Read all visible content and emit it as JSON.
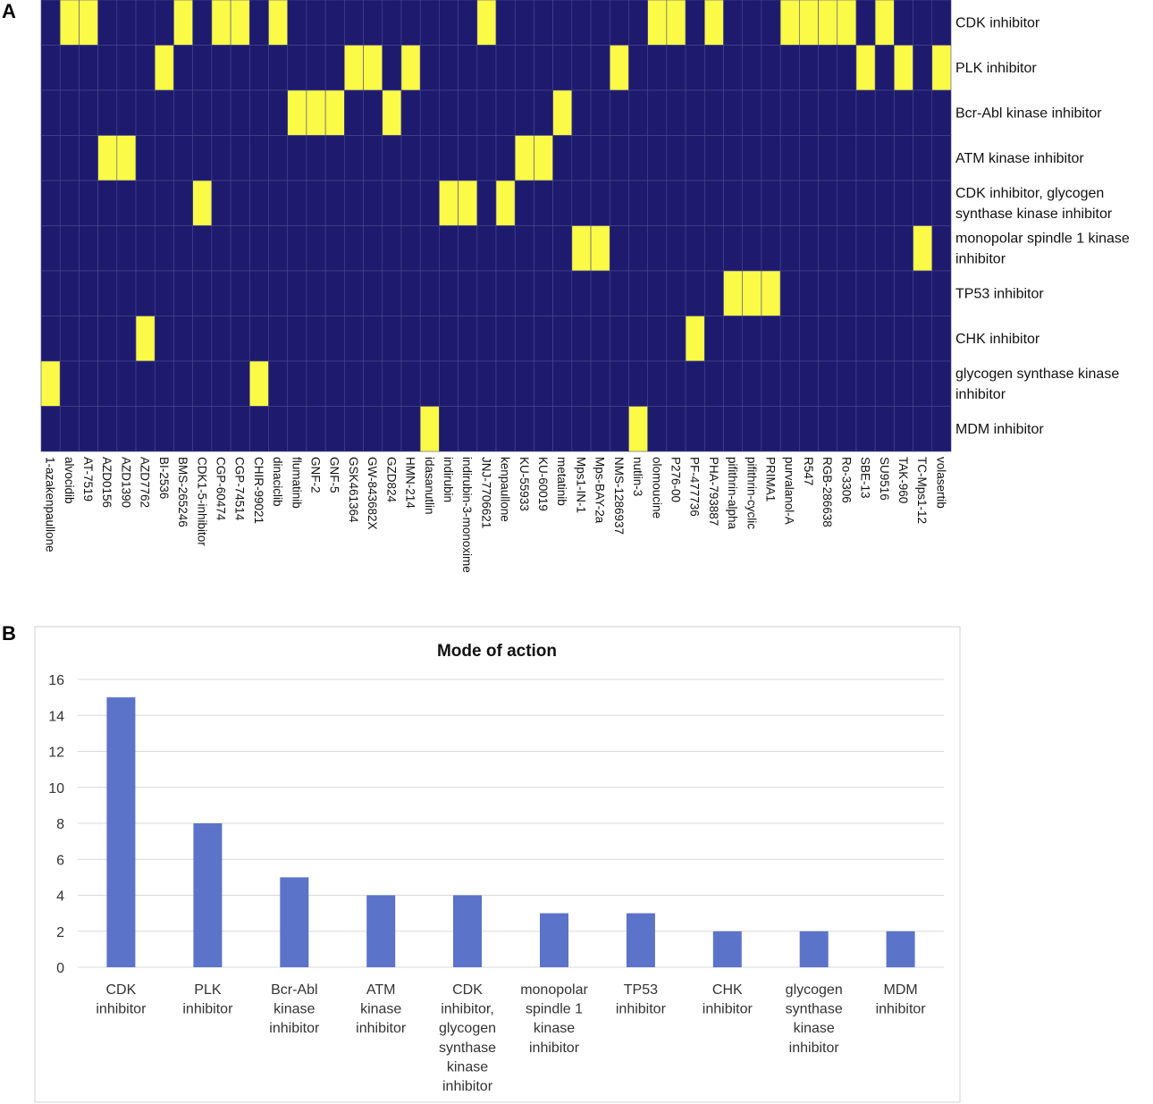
{
  "figure": {
    "panel_a_label": "A",
    "panel_b_label": "B"
  },
  "colors": {
    "cell_off": "#1e1b6e",
    "cell_on": "#fafa47",
    "grid": "#4a4a8e",
    "bar": "#5b73c8",
    "gridline": "#d9d9d9"
  },
  "chart_data": [
    {
      "type": "heatmap",
      "title": "",
      "rows": [
        "CDK inhibitor",
        "PLK inhibitor",
        "Bcr-Abl kinase inhibitor",
        "ATM kinase inhibitor",
        "CDK inhibitor, glycogen synthase kinase inhibitor",
        "monopolar spindle 1 kinase inhibitor",
        "TP53 inhibitor",
        "CHK inhibitor",
        "glycogen synthase kinase inhibitor",
        "MDM inhibitor"
      ],
      "row_label_lines": [
        [
          "CDK inhibitor"
        ],
        [
          "PLK inhibitor"
        ],
        [
          "Bcr-Abl kinase inhibitor"
        ],
        [
          "ATM kinase inhibitor"
        ],
        [
          "CDK inhibitor, glycogen",
          "synthase kinase inhibitor"
        ],
        [
          "monopolar spindle 1 kinase",
          "inhibitor"
        ],
        [
          "TP53 inhibitor"
        ],
        [
          "CHK inhibitor"
        ],
        [
          "glycogen synthase kinase",
          "inhibitor"
        ],
        [
          "MDM inhibitor"
        ]
      ],
      "columns": [
        "1-azakenpaullone",
        "alvocidib",
        "AT-7519",
        "AZD0156",
        "AZD1390",
        "AZD7762",
        "BI-2536",
        "BMS-265246",
        "CDK1-5-inhibitor",
        "CGP-60474",
        "CGP-74514",
        "CHIR-99021",
        "dinaciclib",
        "flumatinib",
        "GNF-2",
        "GNF-5",
        "GSK461364",
        "GW-843682X",
        "GZD824",
        "HMN-214",
        "idasanutlin",
        "indirubin",
        "indirubin-3-monoxime",
        "JNJ-7706621",
        "kenpaullone",
        "KU-55933",
        "KU-60019",
        "metatinib",
        "Mps1-IN-1",
        "Mps-BAY-2a",
        "NMS-1286937",
        "nutlin-3",
        "olomoucine",
        "P276-00",
        "PF-477736",
        "PHA-793887",
        "pifithrin-alpha",
        "pifithrin-cyclic",
        "PRIMA1",
        "purvalanol-A",
        "R547",
        "RGB-286638",
        "Ro-3306",
        "SBE-13",
        "SU9516",
        "TAK-960",
        "TC-Mps1-12",
        "volasertib"
      ],
      "matrix": [
        [
          0,
          1,
          1,
          0,
          0,
          0,
          0,
          1,
          0,
          1,
          1,
          0,
          1,
          0,
          0,
          0,
          0,
          0,
          0,
          0,
          0,
          0,
          0,
          1,
          0,
          0,
          0,
          0,
          0,
          0,
          0,
          0,
          1,
          1,
          0,
          1,
          0,
          0,
          0,
          1,
          1,
          1,
          1,
          0,
          1,
          0,
          0,
          0
        ],
        [
          0,
          0,
          0,
          0,
          0,
          0,
          1,
          0,
          0,
          0,
          0,
          0,
          0,
          0,
          0,
          0,
          1,
          1,
          0,
          1,
          0,
          0,
          0,
          0,
          0,
          0,
          0,
          0,
          0,
          0,
          1,
          0,
          0,
          0,
          0,
          0,
          0,
          0,
          0,
          0,
          0,
          0,
          0,
          1,
          0,
          1,
          0,
          1
        ],
        [
          0,
          0,
          0,
          0,
          0,
          0,
          0,
          0,
          0,
          0,
          0,
          0,
          0,
          1,
          1,
          1,
          0,
          0,
          1,
          0,
          0,
          0,
          0,
          0,
          0,
          0,
          0,
          1,
          0,
          0,
          0,
          0,
          0,
          0,
          0,
          0,
          0,
          0,
          0,
          0,
          0,
          0,
          0,
          0,
          0,
          0,
          0,
          0
        ],
        [
          0,
          0,
          0,
          1,
          1,
          0,
          0,
          0,
          0,
          0,
          0,
          0,
          0,
          0,
          0,
          0,
          0,
          0,
          0,
          0,
          0,
          0,
          0,
          0,
          0,
          1,
          1,
          0,
          0,
          0,
          0,
          0,
          0,
          0,
          0,
          0,
          0,
          0,
          0,
          0,
          0,
          0,
          0,
          0,
          0,
          0,
          0,
          0
        ],
        [
          0,
          0,
          0,
          0,
          0,
          0,
          0,
          0,
          1,
          0,
          0,
          0,
          0,
          0,
          0,
          0,
          0,
          0,
          0,
          0,
          0,
          1,
          1,
          0,
          1,
          0,
          0,
          0,
          0,
          0,
          0,
          0,
          0,
          0,
          0,
          0,
          0,
          0,
          0,
          0,
          0,
          0,
          0,
          0,
          0,
          0,
          0,
          0
        ],
        [
          0,
          0,
          0,
          0,
          0,
          0,
          0,
          0,
          0,
          0,
          0,
          0,
          0,
          0,
          0,
          0,
          0,
          0,
          0,
          0,
          0,
          0,
          0,
          0,
          0,
          0,
          0,
          0,
          1,
          1,
          0,
          0,
          0,
          0,
          0,
          0,
          0,
          0,
          0,
          0,
          0,
          0,
          0,
          0,
          0,
          0,
          1,
          0
        ],
        [
          0,
          0,
          0,
          0,
          0,
          0,
          0,
          0,
          0,
          0,
          0,
          0,
          0,
          0,
          0,
          0,
          0,
          0,
          0,
          0,
          0,
          0,
          0,
          0,
          0,
          0,
          0,
          0,
          0,
          0,
          0,
          0,
          0,
          0,
          0,
          0,
          1,
          1,
          1,
          0,
          0,
          0,
          0,
          0,
          0,
          0,
          0,
          0
        ],
        [
          0,
          0,
          0,
          0,
          0,
          1,
          0,
          0,
          0,
          0,
          0,
          0,
          0,
          0,
          0,
          0,
          0,
          0,
          0,
          0,
          0,
          0,
          0,
          0,
          0,
          0,
          0,
          0,
          0,
          0,
          0,
          0,
          0,
          0,
          1,
          0,
          0,
          0,
          0,
          0,
          0,
          0,
          0,
          0,
          0,
          0,
          0,
          0
        ],
        [
          1,
          0,
          0,
          0,
          0,
          0,
          0,
          0,
          0,
          0,
          0,
          1,
          0,
          0,
          0,
          0,
          0,
          0,
          0,
          0,
          0,
          0,
          0,
          0,
          0,
          0,
          0,
          0,
          0,
          0,
          0,
          0,
          0,
          0,
          0,
          0,
          0,
          0,
          0,
          0,
          0,
          0,
          0,
          0,
          0,
          0,
          0,
          0
        ],
        [
          0,
          0,
          0,
          0,
          0,
          0,
          0,
          0,
          0,
          0,
          0,
          0,
          0,
          0,
          0,
          0,
          0,
          0,
          0,
          0,
          1,
          0,
          0,
          0,
          0,
          0,
          0,
          0,
          0,
          0,
          0,
          1,
          0,
          0,
          0,
          0,
          0,
          0,
          0,
          0,
          0,
          0,
          0,
          0,
          0,
          0,
          0,
          0
        ]
      ]
    },
    {
      "type": "bar",
      "title": "Mode of action",
      "categories": [
        "CDK inhibitor",
        "PLK inhibitor",
        "Bcr-Abl kinase inhibitor",
        "ATM kinase inhibitor",
        "CDK inhibitor, glycogen synthase kinase inhibitor",
        "monopolar spindle 1 kinase inhibitor",
        "TP53 inhibitor",
        "CHK inhibitor",
        "glycogen synthase kinase inhibitor",
        "MDM inhibitor"
      ],
      "category_label_lines": [
        [
          "CDK",
          "inhibitor"
        ],
        [
          "PLK",
          "inhibitor"
        ],
        [
          "Bcr-Abl",
          "kinase",
          "inhibitor"
        ],
        [
          "ATM",
          "kinase",
          "inhibitor"
        ],
        [
          "CDK",
          "inhibitor,",
          "glycogen",
          "synthase",
          "kinase",
          "inhibitor"
        ],
        [
          "monopolar",
          "spindle 1",
          "kinase",
          "inhibitor"
        ],
        [
          "TP53",
          "inhibitor"
        ],
        [
          "CHK",
          "inhibitor"
        ],
        [
          "glycogen",
          "synthase",
          "kinase",
          "inhibitor"
        ],
        [
          "MDM",
          "inhibitor"
        ]
      ],
      "values": [
        15,
        8,
        5,
        4,
        4,
        3,
        3,
        2,
        2,
        2
      ],
      "xlabel": "",
      "ylabel": "",
      "ylim": [
        0,
        16
      ],
      "yticks": [
        0,
        2,
        4,
        6,
        8,
        10,
        12,
        14,
        16
      ],
      "grid": true,
      "legend": "none"
    }
  ]
}
